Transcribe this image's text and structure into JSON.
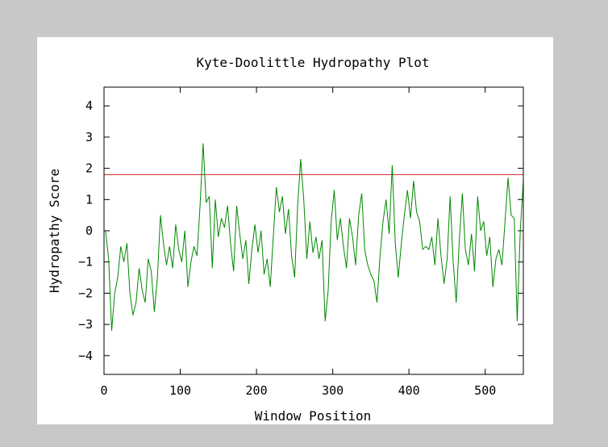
{
  "colors": {
    "background": "#c8c8c8",
    "panel": "#ffffff",
    "axes": "#000000",
    "series": "#008800",
    "threshold": "#cc2222"
  },
  "chart_data": {
    "type": "line",
    "title": "Kyte-Doolittle Hydropathy Plot",
    "xlabel": "Window Position",
    "ylabel": "Hydropathy Score",
    "xlim": [
      0,
      550
    ],
    "ylim": [
      -4.6,
      4.6
    ],
    "xticks": [
      0,
      100,
      200,
      300,
      400,
      500
    ],
    "yticks": [
      -4,
      -3,
      -2,
      -1,
      0,
      1,
      2,
      3,
      4
    ],
    "grid": false,
    "legend": "none",
    "threshold": {
      "y": 1.8
    },
    "series": [
      {
        "points": [
          [
            2,
            0.0
          ],
          [
            6,
            -0.9
          ],
          [
            10,
            -3.2
          ],
          [
            14,
            -2.0
          ],
          [
            18,
            -1.5
          ],
          [
            22,
            -0.5
          ],
          [
            26,
            -1.0
          ],
          [
            30,
            -0.4
          ],
          [
            34,
            -2.0
          ],
          [
            38,
            -2.7
          ],
          [
            42,
            -2.3
          ],
          [
            46,
            -1.2
          ],
          [
            50,
            -1.9
          ],
          [
            54,
            -2.3
          ],
          [
            58,
            -0.9
          ],
          [
            62,
            -1.3
          ],
          [
            66,
            -2.6
          ],
          [
            70,
            -1.5
          ],
          [
            74,
            0.5
          ],
          [
            78,
            -0.4
          ],
          [
            82,
            -1.1
          ],
          [
            86,
            -0.5
          ],
          [
            90,
            -1.2
          ],
          [
            94,
            0.2
          ],
          [
            98,
            -0.6
          ],
          [
            102,
            -1.0
          ],
          [
            106,
            0.0
          ],
          [
            110,
            -1.8
          ],
          [
            114,
            -1.0
          ],
          [
            118,
            -0.5
          ],
          [
            122,
            -0.8
          ],
          [
            126,
            0.8
          ],
          [
            130,
            2.8
          ],
          [
            134,
            0.9
          ],
          [
            138,
            1.1
          ],
          [
            142,
            -1.2
          ],
          [
            146,
            1.0
          ],
          [
            150,
            -0.2
          ],
          [
            154,
            0.4
          ],
          [
            158,
            0.1
          ],
          [
            162,
            0.8
          ],
          [
            166,
            -0.4
          ],
          [
            170,
            -1.3
          ],
          [
            174,
            0.8
          ],
          [
            178,
            -0.1
          ],
          [
            182,
            -0.9
          ],
          [
            186,
            -0.3
          ],
          [
            190,
            -1.7
          ],
          [
            194,
            -0.6
          ],
          [
            198,
            0.2
          ],
          [
            202,
            -0.7
          ],
          [
            206,
            0.0
          ],
          [
            210,
            -1.4
          ],
          [
            214,
            -0.9
          ],
          [
            218,
            -1.8
          ],
          [
            222,
            -0.2
          ],
          [
            226,
            1.4
          ],
          [
            230,
            0.6
          ],
          [
            234,
            1.1
          ],
          [
            238,
            -0.1
          ],
          [
            242,
            0.7
          ],
          [
            246,
            -0.8
          ],
          [
            250,
            -1.5
          ],
          [
            254,
            0.8
          ],
          [
            258,
            2.3
          ],
          [
            262,
            1.0
          ],
          [
            266,
            -0.9
          ],
          [
            270,
            0.3
          ],
          [
            274,
            -0.7
          ],
          [
            278,
            -0.2
          ],
          [
            282,
            -0.9
          ],
          [
            286,
            -0.3
          ],
          [
            290,
            -2.9
          ],
          [
            294,
            -1.9
          ],
          [
            298,
            0.3
          ],
          [
            302,
            1.3
          ],
          [
            306,
            -0.3
          ],
          [
            310,
            0.4
          ],
          [
            314,
            -0.5
          ],
          [
            318,
            -1.2
          ],
          [
            322,
            0.4
          ],
          [
            326,
            -0.2
          ],
          [
            330,
            -1.1
          ],
          [
            334,
            0.5
          ],
          [
            338,
            1.2
          ],
          [
            342,
            -0.6
          ],
          [
            346,
            -1.1
          ],
          [
            350,
            -1.4
          ],
          [
            354,
            -1.6
          ],
          [
            358,
            -2.3
          ],
          [
            362,
            -0.8
          ],
          [
            366,
            0.3
          ],
          [
            370,
            1.0
          ],
          [
            374,
            -0.1
          ],
          [
            378,
            2.1
          ],
          [
            382,
            -0.4
          ],
          [
            386,
            -1.5
          ],
          [
            390,
            -0.4
          ],
          [
            394,
            0.5
          ],
          [
            398,
            1.3
          ],
          [
            402,
            0.4
          ],
          [
            406,
            1.6
          ],
          [
            410,
            0.6
          ],
          [
            414,
            0.3
          ],
          [
            418,
            -0.6
          ],
          [
            422,
            -0.5
          ],
          [
            426,
            -0.6
          ],
          [
            430,
            -0.2
          ],
          [
            434,
            -1.1
          ],
          [
            438,
            0.4
          ],
          [
            442,
            -0.8
          ],
          [
            446,
            -1.7
          ],
          [
            450,
            -0.9
          ],
          [
            454,
            1.1
          ],
          [
            458,
            -1.0
          ],
          [
            462,
            -2.3
          ],
          [
            466,
            -0.3
          ],
          [
            470,
            1.2
          ],
          [
            474,
            -0.6
          ],
          [
            478,
            -1.1
          ],
          [
            482,
            -0.1
          ],
          [
            486,
            -1.3
          ],
          [
            490,
            1.1
          ],
          [
            494,
            0.0
          ],
          [
            498,
            0.3
          ],
          [
            502,
            -0.8
          ],
          [
            506,
            -0.2
          ],
          [
            510,
            -1.8
          ],
          [
            514,
            -0.9
          ],
          [
            518,
            -0.6
          ],
          [
            522,
            -1.1
          ],
          [
            526,
            0.3
          ],
          [
            530,
            1.7
          ],
          [
            534,
            0.5
          ],
          [
            538,
            0.4
          ],
          [
            542,
            -2.9
          ],
          [
            546,
            0.0
          ],
          [
            550,
            1.6
          ]
        ]
      }
    ]
  }
}
